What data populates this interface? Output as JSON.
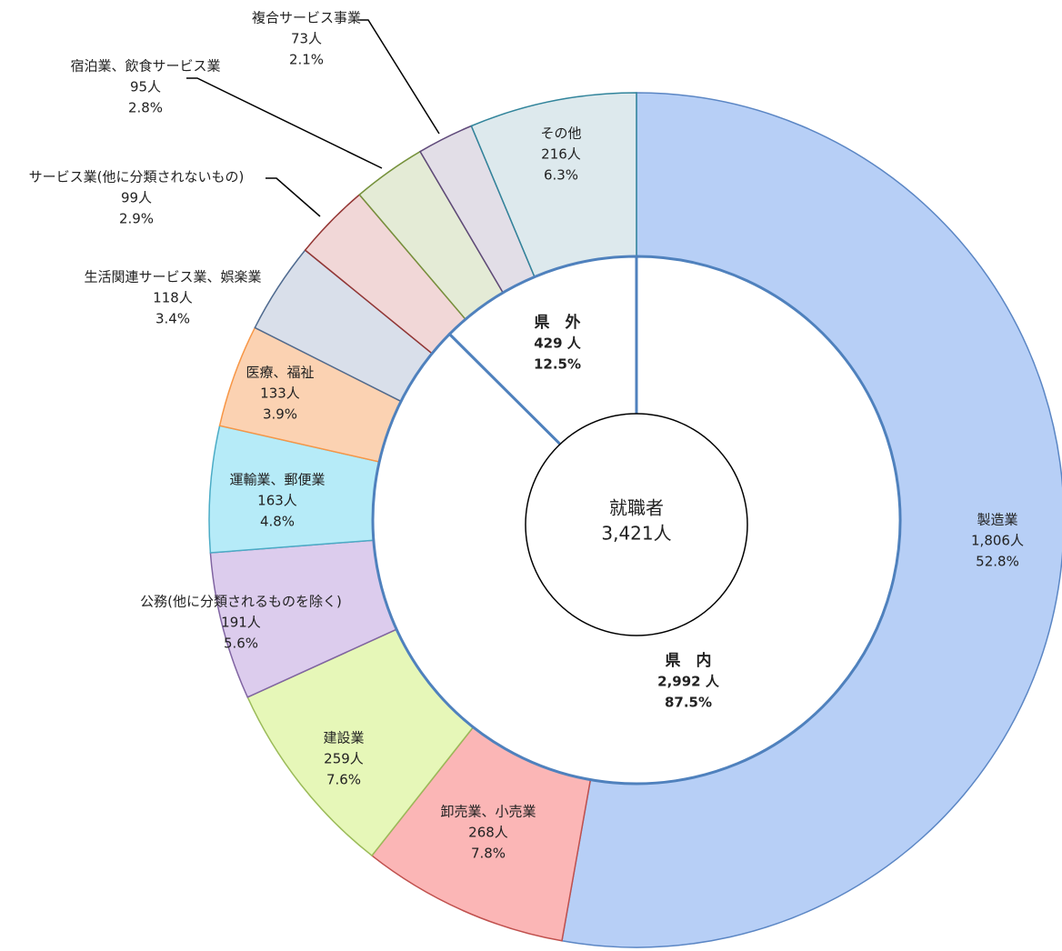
{
  "chart_data": {
    "type": "donut",
    "center_title": "就職者",
    "center_value": 3421,
    "center_value_label": "3,421人",
    "outer": {
      "categories": [
        "製造業",
        "卸売業、小売業",
        "建設業",
        "公務(他に分類されるものを除く)",
        "運輸業、郵便業",
        "医療、福祉",
        "生活関連サービス業、娯楽業",
        "サービス業(他に分類されないもの)",
        "宿泊業、飲食サービス業",
        "複合サービス事業",
        "その他"
      ],
      "values": [
        1806,
        268,
        259,
        191,
        163,
        133,
        118,
        99,
        95,
        73,
        216
      ],
      "value_labels": [
        "1,806人",
        "268人",
        "259人",
        "191人",
        "163人",
        "133人",
        "118人",
        "99人",
        "95人",
        "73人",
        "216人"
      ],
      "shares": [
        52.8,
        7.8,
        7.6,
        5.6,
        4.8,
        3.9,
        3.4,
        2.9,
        2.8,
        2.1,
        6.3
      ],
      "share_labels": [
        "52.8%",
        "7.8%",
        "7.6%",
        "5.6%",
        "4.8%",
        "3.9%",
        "3.4%",
        "2.9%",
        "2.8%",
        "2.1%",
        "6.3%"
      ],
      "colors": [
        "#b7cff6",
        "#fbb6b6",
        "#e6f7b8",
        "#dccced",
        "#b6ebf8",
        "#fbd2b2",
        "#d9dfea",
        "#f1d7d7",
        "#e4ebd6",
        "#e2dee7",
        "#dde9ed"
      ],
      "edge_colors": [
        "#5b86c4",
        "#c0504d",
        "#9bbb59",
        "#8064a2",
        "#4bacc6",
        "#f79646",
        "#4f6a8f",
        "#943634",
        "#76923c",
        "#5f497a",
        "#31849b"
      ]
    },
    "inner": {
      "categories": [
        "県　内",
        "県　外"
      ],
      "values": [
        2992,
        429
      ],
      "value_labels": [
        "2,992 人",
        "429 人"
      ],
      "shares": [
        87.5,
        12.5
      ],
      "share_labels": [
        "87.5%",
        "12.5%"
      ],
      "color": "#ffffff",
      "edge_color": "#4f81bd",
      "text_color": "#4f81bd"
    }
  }
}
